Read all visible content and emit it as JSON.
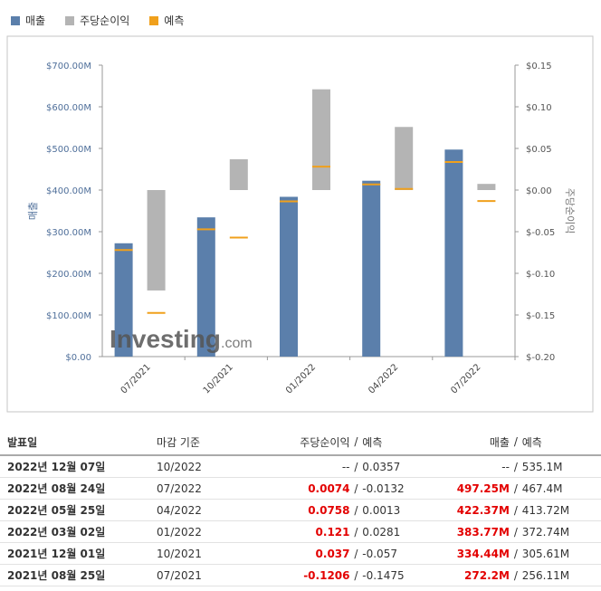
{
  "legend": {
    "revenue": "매출",
    "eps": "주당순이익",
    "forecast": "예측"
  },
  "colors": {
    "revenue": "#5b7fab",
    "eps": "#b4b4b4",
    "forecast": "#f0a01c",
    "axis": "#4f6f9a",
    "frame": "#c6c6c6",
    "red": "#e30000"
  },
  "watermark": {
    "word": "Investing",
    "suffix": ".com"
  },
  "chart_data": {
    "type": "bar",
    "categories": [
      "07/2021",
      "10/2021",
      "01/2022",
      "04/2022",
      "07/2022"
    ],
    "ylabel_left": "매출",
    "ylabel_right": "주당순이익",
    "left_axis": {
      "range": [
        0,
        700
      ],
      "ticks": [
        "$0.00",
        "$100.00M",
        "$200.00M",
        "$300.00M",
        "$400.00M",
        "$500.00M",
        "$600.00M",
        "$700.00M"
      ]
    },
    "right_axis": {
      "range": [
        -0.2,
        0.15
      ],
      "ticks": [
        "$-0.20",
        "$-0.15",
        "$-0.10",
        "$-0.05",
        "$0.00",
        "$0.05",
        "$0.10",
        "$0.15"
      ]
    },
    "series": [
      {
        "name": "매출",
        "axis": "left",
        "kind": "bar",
        "values": [
          272.2,
          334.44,
          383.77,
          422.37,
          497.25
        ]
      },
      {
        "name": "매출 예측",
        "axis": "left",
        "kind": "marker",
        "values": [
          256.11,
          305.61,
          372.74,
          413.72,
          467.4
        ]
      },
      {
        "name": "주당순이익",
        "axis": "right",
        "kind": "floating-bar",
        "values": [
          -0.1206,
          0.037,
          0.121,
          0.0758,
          0.0074
        ]
      },
      {
        "name": "주당순이익 예측",
        "axis": "right",
        "kind": "marker",
        "values": [
          -0.1475,
          -0.057,
          0.0281,
          0.0013,
          -0.0132
        ]
      }
    ],
    "grid": false
  },
  "table": {
    "headers": [
      "발표일",
      "마감 기준",
      "주당순이익",
      "예측",
      "매출",
      "예측"
    ],
    "rows": [
      {
        "date": "2022년 12월 07일",
        "period": "10/2022",
        "eps": "--",
        "eps_sep": "/",
        "eps_forecast": "0.0357",
        "rev": "--",
        "rev_sep": "/",
        "rev_forecast": "535.1M",
        "highlight": false,
        "neg": false
      },
      {
        "date": "2022년 08월 24일",
        "period": "07/2022",
        "eps": "0.0074",
        "eps_sep": "/",
        "eps_forecast": "-0.0132",
        "rev": "497.25M",
        "rev_sep": "/",
        "rev_forecast": "467.4M",
        "highlight": true,
        "neg": false
      },
      {
        "date": "2022년 05월 25일",
        "period": "04/2022",
        "eps": "0.0758",
        "eps_sep": "/",
        "eps_forecast": "0.0013",
        "rev": "422.37M",
        "rev_sep": "/",
        "rev_forecast": "413.72M",
        "highlight": true,
        "neg": false
      },
      {
        "date": "2022년 03월 02일",
        "period": "01/2022",
        "eps": "0.121",
        "eps_sep": "/",
        "eps_forecast": "0.0281",
        "rev": "383.77M",
        "rev_sep": "/",
        "rev_forecast": "372.74M",
        "highlight": true,
        "neg": false
      },
      {
        "date": "2021년 12월 01일",
        "period": "10/2021",
        "eps": "0.037",
        "eps_sep": "/",
        "eps_forecast": "-0.057",
        "rev": "334.44M",
        "rev_sep": "/",
        "rev_forecast": "305.61M",
        "highlight": true,
        "neg": false
      },
      {
        "date": "2021년 08월 25일",
        "period": "07/2021",
        "eps": "-0.1206",
        "eps_sep": "/",
        "eps_forecast": "-0.1475",
        "rev": "272.2M",
        "rev_sep": "/",
        "rev_forecast": "256.11M",
        "highlight": true,
        "neg": true
      }
    ]
  }
}
